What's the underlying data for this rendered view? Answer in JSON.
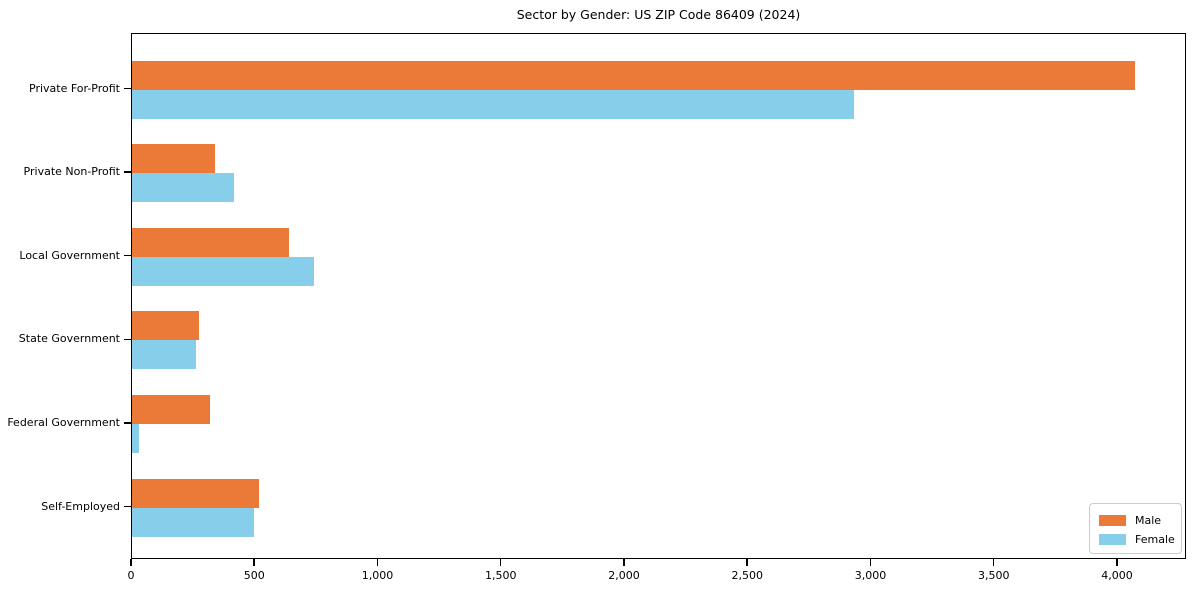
{
  "chart_data": {
    "type": "bar",
    "orientation": "horizontal",
    "title": "Sector by Gender: US ZIP Code 86409 (2024)",
    "categories": [
      "Private For-Profit",
      "Private Non-Profit",
      "Local Government",
      "State Government",
      "Federal Government",
      "Self-Employed"
    ],
    "series": [
      {
        "name": "Male",
        "color": "#EB7A38",
        "values": [
          4070,
          335,
          635,
          270,
          315,
          515
        ]
      },
      {
        "name": "Female",
        "color": "#87CEEB",
        "values": [
          2930,
          415,
          740,
          260,
          30,
          495
        ]
      }
    ],
    "xlabel": "",
    "ylabel": "",
    "xlim": [
      0,
      4280
    ],
    "x_tick_values": [
      0,
      500,
      1000,
      1500,
      2000,
      2500,
      3000,
      3500,
      4000
    ],
    "x_tick_labels": [
      "0",
      "500",
      "1,000",
      "1,500",
      "2,000",
      "2,500",
      "3,000",
      "3,500",
      "4,000"
    ],
    "grid": false,
    "legend": {
      "position": "lower-right",
      "items": [
        {
          "label": "Male",
          "color": "#EB7A38"
        },
        {
          "label": "Female",
          "color": "#87CEEB"
        }
      ]
    }
  }
}
